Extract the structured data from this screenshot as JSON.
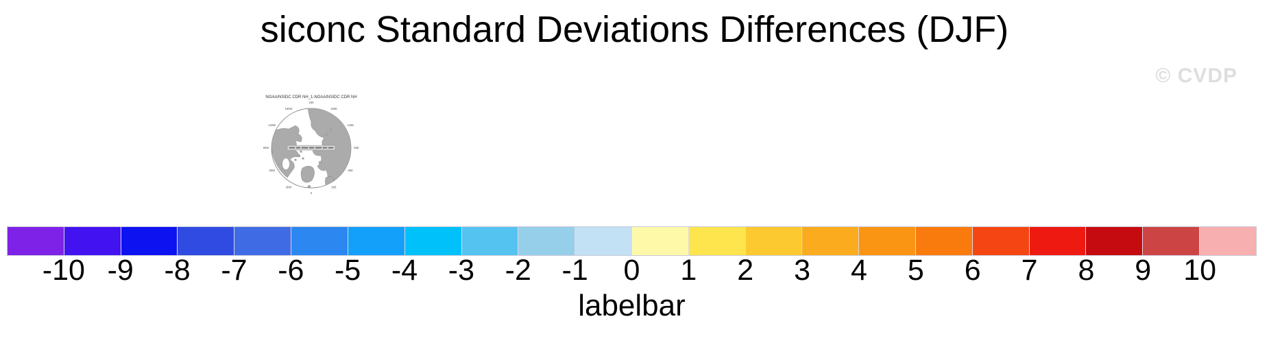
{
  "page": {
    "background": "#ffffff"
  },
  "header": {
    "title": "siconc Standard Deviations Differences (DJF)",
    "watermark": "© CVDP",
    "watermark_color": "#dedede"
  },
  "map": {
    "title": "NOAA/NSIDC CDR NH_1-NOAA/NSIDC CDR NH",
    "land_color": "#ababab",
    "ocean_color": "#ffffff",
    "outline_color": "#666666",
    "ring_labels": [
      "180",
      "150E",
      "120E",
      "90E",
      "60E",
      "30E",
      "0",
      "30W",
      "60W",
      "90W",
      "120W",
      "150W"
    ]
  },
  "chart_data": {
    "type": "heatmap",
    "title": "siconc Standard Deviations Differences (DJF)",
    "map_panel_title": "NOAA/NSIDC CDR NH_1-NOAA/NSIDC CDR NH",
    "legend_position": "bottom",
    "colorbar": {
      "label": "labelbar",
      "orientation": "horizontal",
      "levels": [
        -10,
        -9,
        -8,
        -7,
        -6,
        -5,
        -4,
        -3,
        -2,
        -1,
        0,
        1,
        2,
        3,
        4,
        5,
        6,
        7,
        8,
        9,
        10
      ],
      "tick_labels": [
        "-10",
        "-9",
        "-8",
        "-7",
        "-6",
        "-5",
        "-4",
        "-3",
        "-2",
        "-1",
        "0",
        "1",
        "2",
        "3",
        "4",
        "5",
        "6",
        "7",
        "8",
        "9",
        "10"
      ],
      "colors": [
        "#7e22e8",
        "#4213f0",
        "#0d13f0",
        "#2f4be2",
        "#3f6ce4",
        "#2c88f0",
        "#12a0fa",
        "#01c1fb",
        "#55c3f0",
        "#96cfe9",
        "#c3e1f4",
        "#fdf9a9",
        "#fee54d",
        "#fcc930",
        "#fbac1e",
        "#fa9514",
        "#f97b0d",
        "#f54512",
        "#ee1910",
        "#c50b10",
        "#cc4444",
        "#f8afb0"
      ]
    }
  }
}
